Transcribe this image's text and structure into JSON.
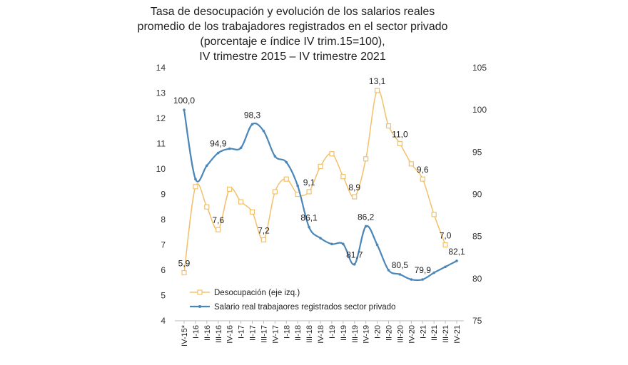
{
  "chart_data": {
    "type": "line",
    "title_lines": [
      "Tasa de desocupación y evolución de los salarios reales",
      "promedio de los trabajadores registrados en el sector privado",
      "(porcentaje e índice IV trim.15=100),",
      "IV trimestre 2015 – IV trimestre 2021"
    ],
    "categories": [
      "IV-15*",
      "I-16",
      "II-16",
      "III-16",
      "IV-16",
      "I-17",
      "II-17",
      "III-17",
      "IV-17",
      "I-18",
      "II-18",
      "III-18",
      "IV-18",
      "I-19",
      "II-19",
      "III-19",
      "IV-19",
      "I-20",
      "II-20",
      "III-20",
      "IV-20",
      "I-21",
      "II-21",
      "III-21",
      "IV-21"
    ],
    "left_axis": {
      "min": 4,
      "max": 14,
      "ticks": [
        4,
        5,
        6,
        7,
        8,
        9,
        10,
        11,
        12,
        13,
        14
      ]
    },
    "right_axis": {
      "min": 75,
      "max": 105,
      "ticks": [
        75,
        80,
        85,
        90,
        95,
        100,
        105
      ]
    },
    "series": [
      {
        "name": "Desocupación (eje izq.)",
        "axis": "left",
        "color": "#f2c06b",
        "marker": "square",
        "values": [
          5.9,
          9.3,
          8.5,
          7.6,
          9.2,
          8.7,
          8.3,
          7.2,
          9.1,
          9.6,
          9.0,
          9.1,
          10.1,
          10.6,
          9.7,
          8.9,
          10.4,
          13.1,
          11.7,
          11.0,
          10.2,
          9.6,
          8.2,
          7.0,
          null
        ],
        "labels": {
          "0": "5,9",
          "3": "7,6",
          "7": "7,2",
          "11": "9,1",
          "15": "8,9",
          "17": "13,1",
          "19": "11,0",
          "21": "9,6",
          "23": "7,0"
        }
      },
      {
        "name": "Salario real trabajaores registrados sector privado",
        "axis": "right",
        "color": "#4a86b8",
        "marker": "dot",
        "values": [
          100.0,
          91.8,
          93.4,
          94.9,
          95.4,
          95.5,
          98.3,
          97.5,
          94.5,
          93.8,
          91.0,
          86.1,
          84.8,
          84.1,
          84.1,
          81.7,
          86.2,
          84.0,
          81.0,
          80.5,
          79.9,
          79.9,
          80.7,
          81.4,
          82.1
        ],
        "labels": {
          "0": "100,0",
          "3": "94,9",
          "6": "98,3",
          "11": "86,1",
          "15": "81,7",
          "16": "86,2",
          "19": "80,5",
          "21": "79,9",
          "24": "82,1"
        }
      }
    ],
    "legend_position": "bottom-left",
    "grid": false
  }
}
